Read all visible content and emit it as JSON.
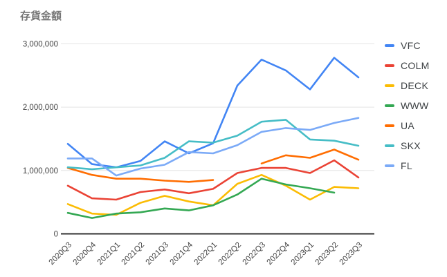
{
  "chart_data": {
    "type": "line",
    "title": "存貨金額",
    "categories": [
      "2020Q3",
      "2020Q4",
      "2021Q1",
      "2021Q2",
      "2021Q3",
      "2021Q4",
      "2022Q1",
      "2022Q2",
      "2022Q3",
      "2022Q4",
      "2023Q1",
      "2023Q2",
      "2023Q3"
    ],
    "series": [
      {
        "name": "VFC",
        "color": "#4285F4",
        "values": [
          1420000,
          1100000,
          1050000,
          1150000,
          1460000,
          1270000,
          1430000,
          2340000,
          2750000,
          2580000,
          2280000,
          2780000,
          2470000
        ]
      },
      {
        "name": "COLM",
        "color": "#EA4335",
        "values": [
          760000,
          560000,
          540000,
          660000,
          700000,
          640000,
          710000,
          960000,
          1040000,
          1040000,
          960000,
          1160000,
          890000
        ]
      },
      {
        "name": "DECK",
        "color": "#FBBC04",
        "values": [
          470000,
          320000,
          300000,
          490000,
          600000,
          510000,
          450000,
          790000,
          930000,
          760000,
          540000,
          740000,
          720000
        ]
      },
      {
        "name": "WWW",
        "color": "#34A853",
        "values": [
          330000,
          250000,
          320000,
          340000,
          400000,
          370000,
          450000,
          620000,
          870000,
          780000,
          720000,
          650000,
          null
        ]
      },
      {
        "name": "UA",
        "color": "#FF6D01",
        "values": [
          1040000,
          930000,
          870000,
          870000,
          840000,
          820000,
          850000,
          null,
          1110000,
          1240000,
          1200000,
          1330000,
          1170000
        ]
      },
      {
        "name": "SKX",
        "color": "#46BDC6",
        "values": [
          1050000,
          1020000,
          1050000,
          1080000,
          1200000,
          1460000,
          1440000,
          1550000,
          1770000,
          1800000,
          1490000,
          1470000,
          1390000
        ]
      },
      {
        "name": "FL",
        "color": "#7BAAF7",
        "values": [
          1190000,
          1190000,
          920000,
          1030000,
          1090000,
          1290000,
          1270000,
          1400000,
          1610000,
          1670000,
          1640000,
          1750000,
          1830000
        ]
      }
    ],
    "y_ticks": [
      0,
      1000000,
      2000000,
      3000000
    ],
    "y_tick_labels": [
      "0",
      "1,000,000",
      "2,000,000",
      "3,000,000"
    ],
    "ylim": [
      0,
      3000000
    ],
    "xlabel": "",
    "ylabel": "",
    "grid": "horizontal",
    "legend_position": "right"
  }
}
